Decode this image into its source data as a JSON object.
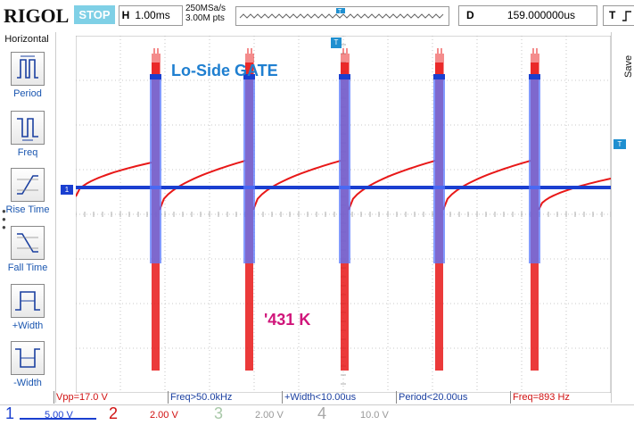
{
  "header": {
    "logo": "RIGOL",
    "status": "STOP",
    "timebase_label": "H",
    "timebase_value": "1.00ms",
    "sample_rate": "250MSa/s",
    "memory_depth": "3.00M pts",
    "delay_label": "D",
    "delay_value": "159.000000us",
    "trigger_label": "T"
  },
  "left_menu": {
    "title": "Horizontal",
    "items": [
      {
        "label": "Period",
        "icon": "period-icon"
      },
      {
        "label": "Freq",
        "icon": "freq-icon"
      },
      {
        "label": "Rise Time",
        "icon": "rise-time-icon"
      },
      {
        "label": "Fall Time",
        "icon": "fall-time-icon"
      },
      {
        "label": "+Width",
        "icon": "pos-width-icon"
      },
      {
        "label": "-Width",
        "icon": "neg-width-icon"
      }
    ]
  },
  "right_menu": {
    "save_label": "Save"
  },
  "annotations": {
    "blue_label": "Lo-Side GATE",
    "magenta_label": "'431 K"
  },
  "measurements": [
    {
      "text": "Vpp=17.0 V",
      "color": "red"
    },
    {
      "text": "Freq>50.0kHz",
      "color": "blue"
    },
    {
      "text": "+Width<10.00us",
      "color": "blue"
    },
    {
      "text": "Period<20.00us",
      "color": "blue"
    },
    {
      "text": "Freq=893 Hz",
      "color": "red"
    }
  ],
  "channels": [
    {
      "number": "1",
      "scale": "5.00 V",
      "color": "#1a3fd0"
    },
    {
      "number": "2",
      "scale": "2.00 V",
      "color": "#d01010"
    },
    {
      "number": "3",
      "scale": "2.00 V",
      "color": "#a8c8a8"
    },
    {
      "number": "4",
      "scale": "10.0 V",
      "color": "#a8a8a8"
    }
  ],
  "ch1_marker": "1",
  "trigger_marker": "T",
  "colors": {
    "ch1": "#1a3fd0",
    "ch2": "#e81818",
    "stop_bg": "#7fd0e6",
    "label_blue": "#1f7fd0",
    "label_magenta": "#d0157a"
  }
}
